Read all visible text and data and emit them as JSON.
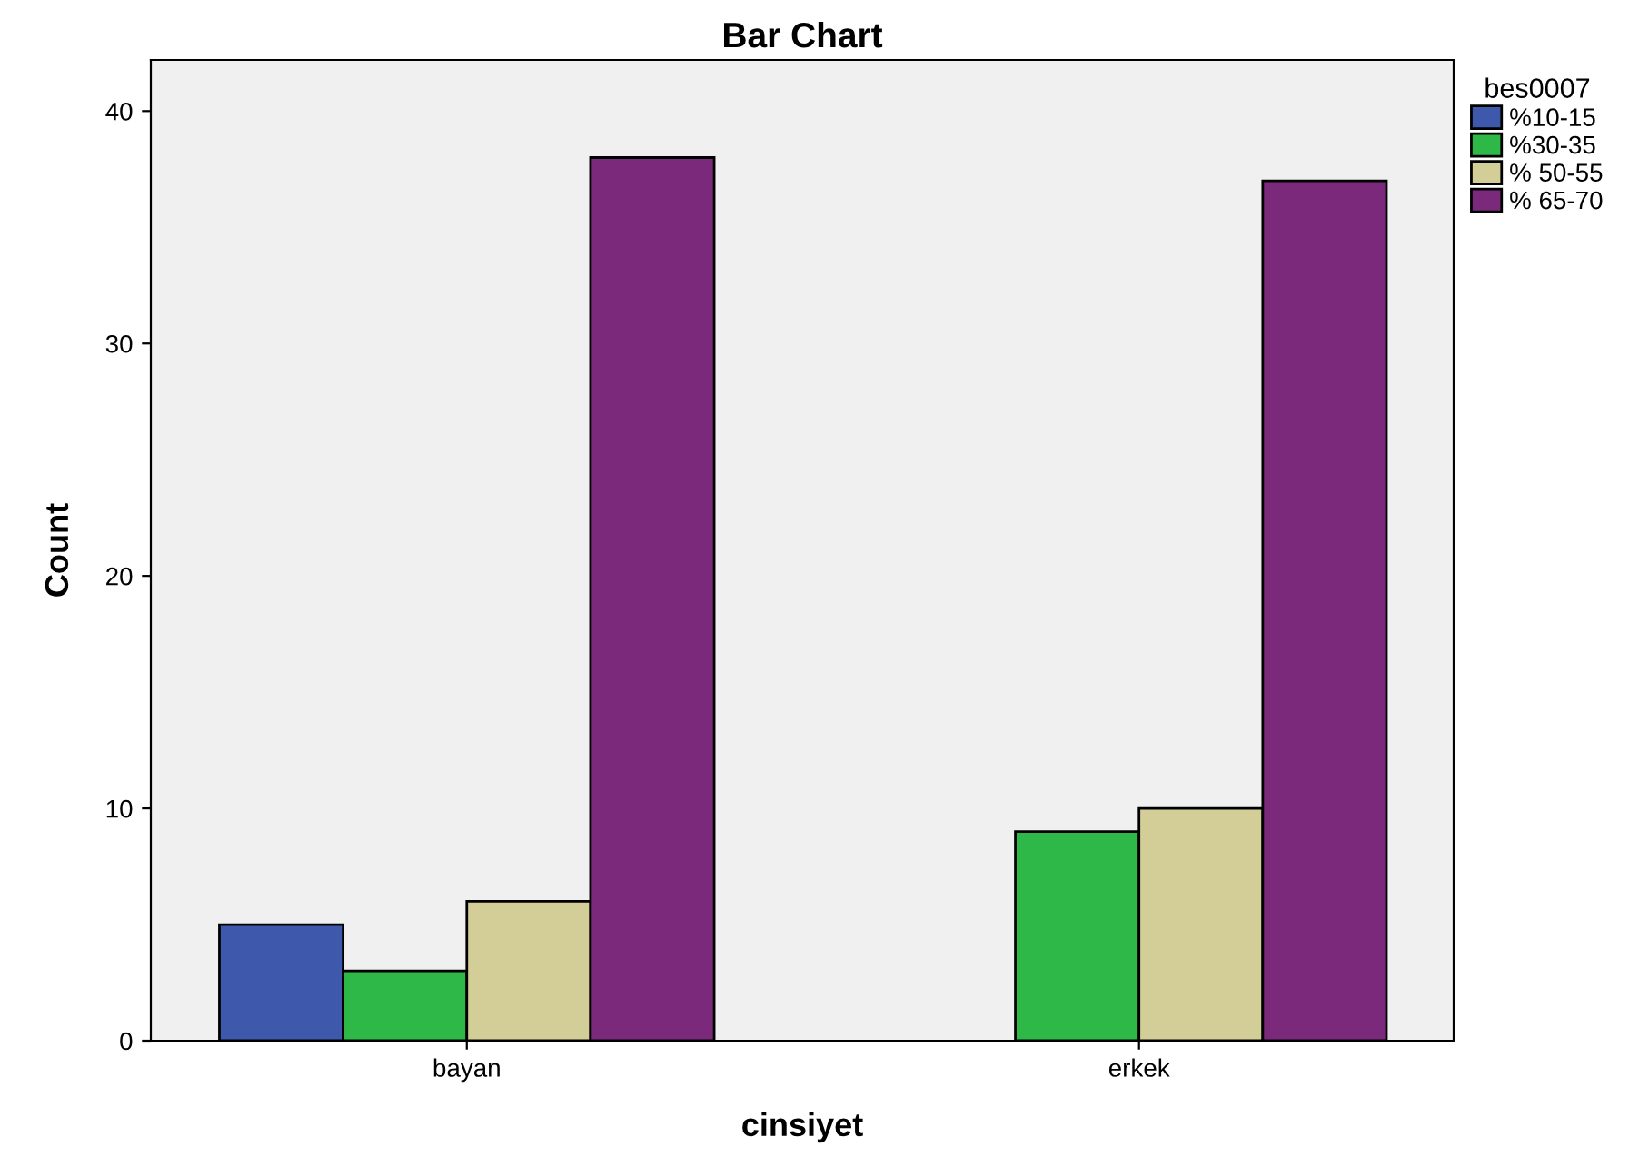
{
  "chart_data": {
    "type": "bar",
    "title": "Bar Chart",
    "xlabel": "cinsiyet",
    "ylabel": "Count",
    "legend_title": "bes0007",
    "categories": [
      "bayan",
      "erkek"
    ],
    "series": [
      {
        "name": "%10-15",
        "color": "#3e58ac",
        "values": [
          5,
          null
        ]
      },
      {
        "name": "%30-35",
        "color": "#2eb848",
        "values": [
          3,
          9
        ]
      },
      {
        "name": "% 50-55",
        "color": "#d3ce97",
        "values": [
          6,
          10
        ]
      },
      {
        "name": "% 65-70",
        "color": "#7b2a7b",
        "values": [
          38,
          37
        ]
      }
    ],
    "ylim": [
      0,
      42.2
    ],
    "yticks": [
      0,
      10,
      20,
      30,
      40
    ],
    "grid": false,
    "legend": "top right"
  }
}
